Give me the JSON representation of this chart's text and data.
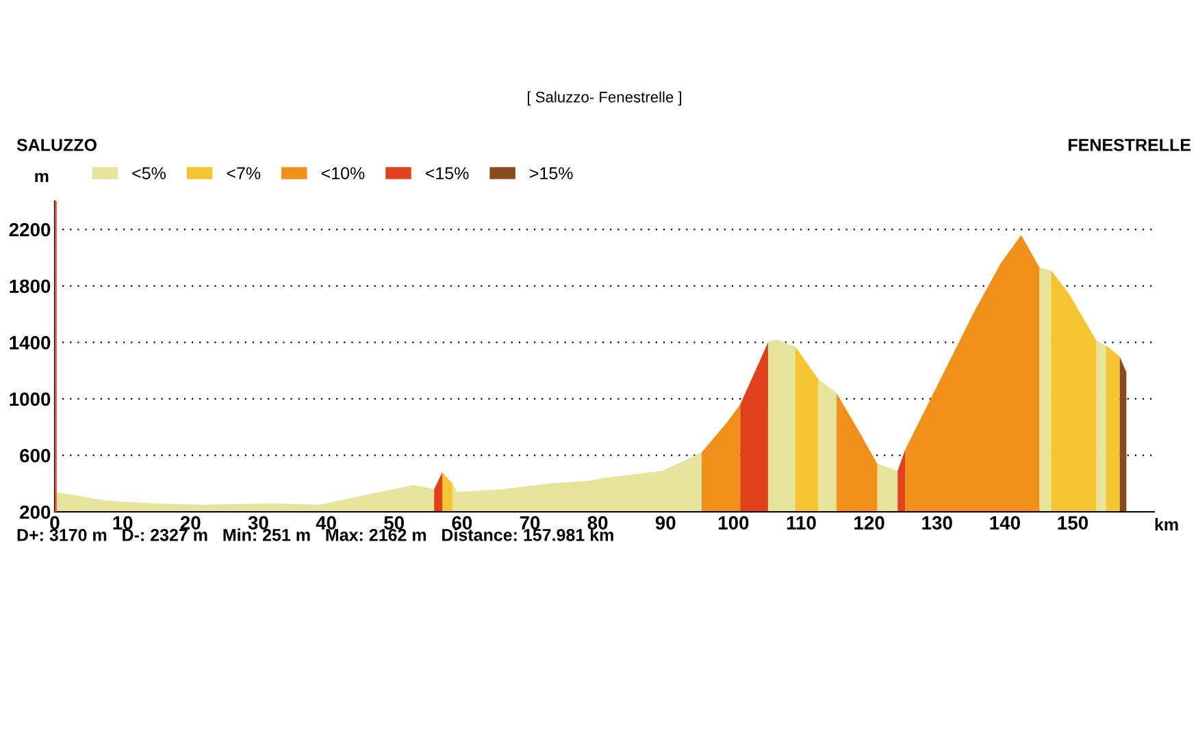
{
  "chart_data": {
    "type": "area",
    "title": "[ Saluzzo- Fenestrelle ]",
    "annotations": [
      "SALUZZO",
      "FENESTRELLE",
      "D+: 3170 m   D-: 2327 m   Min: 251 m   Max: 2162 m   Distance: 157.981 km"
    ],
    "xlabel": "km",
    "ylabel": "m",
    "xlim": [
      0,
      162
    ],
    "ylim": [
      200,
      2400
    ],
    "xticks": [
      0,
      10,
      20,
      30,
      40,
      50,
      60,
      70,
      80,
      90,
      100,
      110,
      120,
      130,
      140,
      150
    ],
    "yticks": [
      200,
      600,
      1000,
      1400,
      1800,
      2200
    ],
    "grid": "y",
    "legend": "top left",
    "ref_lines": [
      {
        "axis": "x",
        "value": 0,
        "color": "#e05030"
      }
    ],
    "series": [
      {
        "name": "<5%",
        "color": "#e6e49c",
        "x": [
          0,
          2.7,
          7.4,
          14.1,
          22,
          32,
          39,
          45.8,
          52.9,
          55.9
        ],
        "values": [
          340,
          320,
          280,
          260,
          250,
          260,
          250,
          320,
          390,
          360
        ]
      },
      {
        "name": "<7%",
        "color": "#f5c431",
        "x": [
          57.1,
          58.6
        ],
        "values": [
          480,
          400
        ]
      },
      {
        "name": "<10%",
        "color": "#f0901a",
        "x": [
          95.3,
          99,
          101
        ],
        "values": [
          620,
          830,
          960
        ]
      },
      {
        "name": "<15%",
        "color": "#e0401a",
        "x": [
          55.9,
          57.1
        ],
        "values": [
          360,
          480
        ]
      },
      {
        "name": ">15%",
        "color": "#8b4a1e",
        "x": [
          156.9,
          157.9
        ],
        "values": [
          1300,
          1190
        ]
      },
      {
        "color": "#e6e49c",
        "x": [
          58.6,
          59.3,
          66,
          72.7,
          78.8,
          80.8,
          89.5,
          95.3
        ],
        "values": [
          400,
          340,
          360,
          400,
          420,
          440,
          490,
          620
        ]
      },
      {
        "color": "#e6e49c",
        "x": [
          105.1,
          106.4,
          109.1
        ],
        "values": [
          1400,
          1420,
          1370
        ]
      },
      {
        "color": "#e6e49c",
        "x": [
          112.5,
          115.2
        ],
        "values": [
          1140,
          1040
        ]
      },
      {
        "color": "#e6e49c",
        "x": [
          121.2,
          124.2
        ],
        "values": [
          540,
          490
        ]
      },
      {
        "color": "#e6e49c",
        "x": [
          145.1,
          146.8
        ],
        "values": [
          1930,
          1910
        ]
      },
      {
        "color": "#e6e49c",
        "x": [
          153.5,
          154.9
        ],
        "values": [
          1410,
          1380
        ]
      },
      {
        "color": "#f5c431",
        "x": [
          109.1,
          112.5
        ],
        "values": [
          1370,
          1140
        ]
      },
      {
        "color": "#f5c431",
        "x": [
          146.8,
          149.5,
          153.5
        ],
        "values": [
          1910,
          1740,
          1410
        ]
      },
      {
        "color": "#f5c431",
        "x": [
          154.9,
          156.9
        ],
        "values": [
          1380,
          1300
        ]
      },
      {
        "color": "#f0901a",
        "x": [
          115.2,
          118.5,
          121.2
        ],
        "values": [
          1040,
          770,
          540
        ]
      },
      {
        "color": "#f0901a",
        "x": [
          125.3,
          130,
          135.4,
          139.4,
          142.4,
          145.1
        ],
        "values": [
          640,
          1090,
          1610,
          1960,
          2160,
          1930
        ]
      },
      {
        "color": "#e0401a",
        "x": [
          101,
          105.1
        ],
        "values": [
          960,
          1400
        ]
      },
      {
        "color": "#e0401a",
        "x": [
          124.2,
          125.3
        ],
        "values": [
          490,
          640
        ]
      }
    ]
  }
}
